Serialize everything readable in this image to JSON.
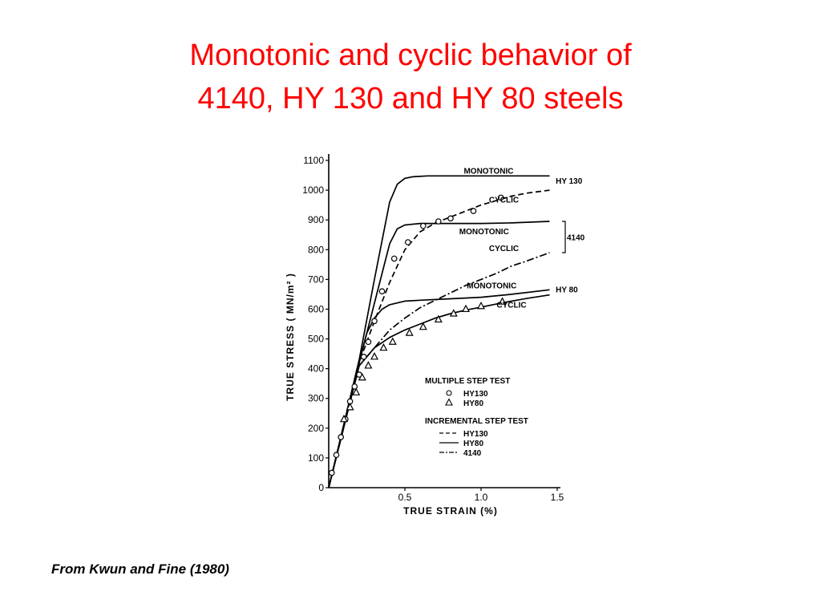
{
  "slide": {
    "title_line1": "Monotonic and cyclic behavior of",
    "title_line2": "4140, HY 130 and HY 80 steels",
    "source": "From Kwun and Fine (1980)",
    "title_color": "#ff0000"
  },
  "chart_data": {
    "type": "line",
    "xlabel": "TRUE   STRAIN  (%)",
    "ylabel": "TRUE   STRESS  ( MN/m² )",
    "xlim": [
      0,
      1.5
    ],
    "ylim": [
      0,
      1100
    ],
    "xticks": [
      {
        "value": 0.5,
        "label": "0.5"
      },
      {
        "value": 1.0,
        "label": "1.0"
      },
      {
        "value": 1.5,
        "label": "1.5"
      }
    ],
    "yticks": [
      {
        "value": 0,
        "label": "0"
      },
      {
        "value": 100,
        "label": "100"
      },
      {
        "value": 200,
        "label": "200"
      },
      {
        "value": 300,
        "label": "300"
      },
      {
        "value": 400,
        "label": "400"
      },
      {
        "value": 500,
        "label": "500"
      },
      {
        "value": 600,
        "label": "600"
      },
      {
        "value": 700,
        "label": "700"
      },
      {
        "value": 800,
        "label": "800"
      },
      {
        "value": 900,
        "label": "900"
      },
      {
        "value": 1000,
        "label": "1000"
      },
      {
        "value": 1100,
        "label": "1100"
      }
    ],
    "series": [
      {
        "name": "HY130 MONOTONIC",
        "style": "solid",
        "x": [
          0,
          0.2,
          0.3,
          0.4,
          0.45,
          0.5,
          0.55,
          0.65,
          0.8,
          1.0,
          1.2,
          1.45
        ],
        "y": [
          0,
          430,
          700,
          960,
          1020,
          1040,
          1045,
          1048,
          1048,
          1048,
          1048,
          1048
        ]
      },
      {
        "name": "HY130 CYCLIC",
        "style": "dashed",
        "x": [
          0,
          0.2,
          0.3,
          0.4,
          0.5,
          0.6,
          0.7,
          0.8,
          0.9,
          1.0,
          1.1,
          1.2,
          1.3,
          1.45
        ],
        "y": [
          0,
          420,
          560,
          690,
          800,
          860,
          890,
          910,
          930,
          950,
          965,
          980,
          990,
          1000
        ]
      },
      {
        "name": "4140 MONOTONIC",
        "style": "solid",
        "x": [
          0,
          0.2,
          0.3,
          0.4,
          0.45,
          0.5,
          0.6,
          0.8,
          1.0,
          1.2,
          1.45
        ],
        "y": [
          0,
          420,
          620,
          820,
          870,
          883,
          888,
          888,
          888,
          890,
          895
        ]
      },
      {
        "name": "4140 CYCLIC",
        "style": "dashdot",
        "x": [
          0,
          0.2,
          0.3,
          0.4,
          0.5,
          0.6,
          0.7,
          0.8,
          0.9,
          1.0,
          1.1,
          1.2,
          1.3,
          1.45
        ],
        "y": [
          0,
          410,
          470,
          530,
          570,
          605,
          630,
          655,
          680,
          700,
          720,
          745,
          762,
          790
        ]
      },
      {
        "name": "HY80 MONOTONIC",
        "style": "solid",
        "x": [
          0,
          0.2,
          0.25,
          0.3,
          0.35,
          0.4,
          0.5,
          0.6,
          0.8,
          1.0,
          1.2,
          1.45
        ],
        "y": [
          0,
          420,
          520,
          570,
          600,
          615,
          627,
          630,
          635,
          640,
          650,
          665
        ]
      },
      {
        "name": "HY80 CYCLIC",
        "style": "solid",
        "x": [
          0,
          0.2,
          0.3,
          0.4,
          0.5,
          0.6,
          0.7,
          0.8,
          0.9,
          1.0,
          1.1,
          1.2,
          1.3,
          1.45
        ],
        "y": [
          0,
          410,
          470,
          505,
          530,
          550,
          570,
          585,
          597,
          607,
          617,
          627,
          636,
          648
        ]
      }
    ],
    "markers": [
      {
        "name": "HY130",
        "symbol": "circle",
        "x": [
          0.02,
          0.05,
          0.08,
          0.11,
          0.14,
          0.17,
          0.2,
          0.23,
          0.26,
          0.3,
          0.35,
          0.43,
          0.52,
          0.62,
          0.72,
          0.8,
          0.95,
          1.13
        ],
        "y": [
          50,
          110,
          170,
          230,
          290,
          340,
          380,
          440,
          490,
          560,
          660,
          770,
          825,
          880,
          895,
          905,
          930,
          975
        ]
      },
      {
        "name": "HY80",
        "symbol": "triangle",
        "x": [
          0.1,
          0.14,
          0.18,
          0.22,
          0.26,
          0.3,
          0.36,
          0.42,
          0.53,
          0.62,
          0.72,
          0.82,
          0.9,
          1.0,
          1.14
        ],
        "y": [
          230,
          270,
          320,
          370,
          410,
          440,
          470,
          490,
          520,
          540,
          565,
          585,
          600,
          610,
          625
        ]
      }
    ],
    "curve_labels": [
      {
        "text": "MONOTONIC",
        "x": 1.05,
        "y": 1055
      },
      {
        "text": "CYCLIC",
        "x": 1.15,
        "y": 958
      },
      {
        "text": "MONOTONIC",
        "x": 1.02,
        "y": 852
      },
      {
        "text": "CYCLIC",
        "x": 1.15,
        "y": 795
      },
      {
        "text": "MONOTONIC",
        "x": 1.07,
        "y": 670
      },
      {
        "text": "CYCLIC",
        "x": 1.2,
        "y": 605
      }
    ],
    "group_labels": [
      "HY 130",
      "4140",
      "HY 80"
    ],
    "legend": {
      "heading1": "MULTIPLE  STEP  TEST",
      "marker_items": [
        {
          "symbol": "circle",
          "label": "HY130"
        },
        {
          "symbol": "triangle",
          "label": "HY80"
        }
      ],
      "heading2": "INCREMENTAL  STEP  TEST",
      "line_items": [
        {
          "style": "dashed",
          "label": "HY130"
        },
        {
          "style": "solid",
          "label": "HY80"
        },
        {
          "style": "dashdot",
          "label": "4140"
        }
      ]
    }
  }
}
